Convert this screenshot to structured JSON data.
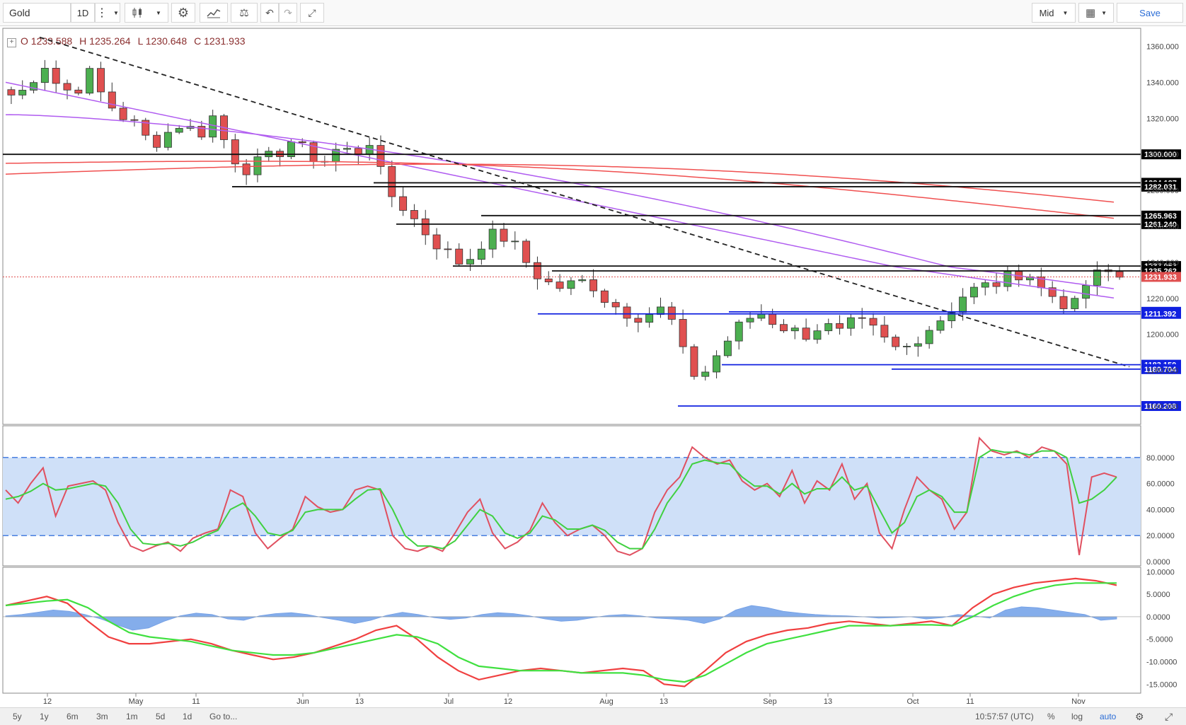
{
  "toolbar": {
    "symbol": "Gold",
    "interval": "1D",
    "price_type": "Mid",
    "save_label": "Save"
  },
  "ohlc": {
    "open": "O 1233.588",
    "high": "H 1235.264",
    "low": "L 1230.648",
    "close": "C 1231.933"
  },
  "bottom_bar": {
    "ranges": [
      "5y",
      "1y",
      "6m",
      "3m",
      "1m",
      "5d",
      "1d"
    ],
    "goto": "Go to...",
    "time": "10:57:57 (UTC)",
    "percent": "%",
    "log": "log",
    "auto": "auto"
  },
  "colors": {
    "up": "#4caf50",
    "down": "#e05050",
    "ma_purple": "#b05cf0",
    "ma_red": "#f05050",
    "support": "#1020e0",
    "rsi_band": "#cfe0f8",
    "macd_hist": "#6f9fe8"
  },
  "chart_data": [
    {
      "type": "candlestick",
      "x_labels": [
        "12",
        "May",
        "11",
        "Jun",
        "13",
        "Jul",
        "12",
        "Aug",
        "13",
        "Sep",
        "13",
        "Oct",
        "11",
        "Nov"
      ],
      "ylim": [
        1150,
        1370
      ],
      "y_ticks": [
        "1360.000",
        "1340.000",
        "1320.000",
        "1300.000",
        "1280.000",
        "1260.000",
        "1240.000",
        "1220.000",
        "1200.000",
        "1180.000",
        "1160.000"
      ],
      "close_path": [
        1333,
        1336,
        1352,
        1338,
        1334,
        1345,
        1330,
        1322,
        1316,
        1305,
        1312,
        1318,
        1310,
        1322,
        1300,
        1292,
        1296,
        1300,
        1308,
        1300,
        1296,
        1304,
        1300,
        1308,
        1280,
        1272,
        1262,
        1252,
        1245,
        1238,
        1250,
        1256,
        1252,
        1240,
        1230,
        1226,
        1228,
        1230,
        1220,
        1214,
        1210,
        1212,
        1215,
        1190,
        1174,
        1186,
        1198,
        1208,
        1212,
        1206,
        1202,
        1200,
        1206,
        1200,
        1207,
        1204,
        1196,
        1190,
        1198,
        1205,
        1212,
        1222,
        1226,
        1228,
        1232,
        1236,
        1225,
        1220,
        1214,
        1230,
        1235,
        1232
      ],
      "horizontal_levels": [
        {
          "label": "1300.000",
          "value": 1300.0,
          "color": "black"
        },
        {
          "label": "1284.187",
          "value": 1284.187,
          "color": "black"
        },
        {
          "label": "1282.031",
          "value": 1282.031,
          "color": "black"
        },
        {
          "label": "1265.963",
          "value": 1265.963,
          "color": "black"
        },
        {
          "label": "1261.240",
          "value": 1261.24,
          "color": "black"
        },
        {
          "label": "1237.953",
          "value": 1237.953,
          "color": "black"
        },
        {
          "label": "1235.262",
          "value": 1235.262,
          "color": "black"
        },
        {
          "label": "1231.933",
          "value": 1231.933,
          "color": "red"
        },
        {
          "label": "1212.526",
          "value": 1212.526,
          "color": "blue"
        },
        {
          "label": "1211.392",
          "value": 1211.392,
          "color": "blue"
        },
        {
          "label": "1183.150",
          "value": 1183.15,
          "color": "blue"
        },
        {
          "label": "1180.704",
          "value": 1180.704,
          "color": "blue"
        },
        {
          "label": "1160.208",
          "value": 1160.208,
          "color": "blue"
        }
      ],
      "trendline": {
        "style": "dashed",
        "from": 1365,
        "to": 1182
      }
    },
    {
      "type": "line",
      "ylim": [
        0,
        100
      ],
      "y_ticks": [
        "80.0000",
        "60.0000",
        "40.0000",
        "20.0000",
        "0.0000"
      ],
      "band": [
        20,
        80
      ],
      "series": [
        {
          "values": [
            55,
            45,
            60,
            72,
            35,
            58,
            60,
            62,
            55,
            30,
            12,
            8,
            12,
            15,
            8,
            18,
            22,
            25,
            55,
            50,
            22,
            10,
            18,
            25,
            50,
            42,
            38,
            40,
            55,
            58,
            55,
            20,
            10,
            8,
            12,
            8,
            22,
            38,
            48,
            22,
            10,
            15,
            24,
            45,
            30,
            20,
            25,
            28,
            20,
            8,
            5,
            10,
            38,
            55,
            65,
            88,
            80,
            75,
            78,
            62,
            55,
            60,
            50,
            70,
            45,
            62,
            55,
            75,
            48,
            60,
            22,
            10,
            40,
            65,
            55,
            48,
            25,
            38,
            95,
            85,
            82,
            85,
            80,
            88,
            85,
            75,
            5,
            65,
            68,
            65
          ]
        },
        {
          "values": [
            48,
            50,
            54,
            60,
            55,
            56,
            58,
            60,
            58,
            45,
            25,
            14,
            13,
            14,
            12,
            15,
            20,
            24,
            40,
            45,
            35,
            22,
            20,
            24,
            38,
            40,
            40,
            40,
            48,
            55,
            56,
            40,
            20,
            12,
            12,
            10,
            16,
            28,
            40,
            35,
            22,
            18,
            22,
            35,
            32,
            25,
            25,
            28,
            24,
            15,
            10,
            10,
            25,
            45,
            58,
            75,
            78,
            76,
            75,
            65,
            58,
            58,
            52,
            60,
            52,
            56,
            56,
            65,
            55,
            58,
            40,
            22,
            30,
            50,
            55,
            50,
            38,
            38,
            80,
            86,
            84,
            84,
            82,
            85,
            85,
            80,
            45,
            48,
            55,
            65
          ]
        }
      ]
    },
    {
      "type": "line",
      "ylim": [
        -17,
        11
      ],
      "y_ticks": [
        "10.0000",
        "5.0000",
        "0.0000",
        "-5.0000",
        "-10.0000",
        "-15.0000"
      ],
      "histogram": [
        0.2,
        0.5,
        1.0,
        1.5,
        1.2,
        0.5,
        -0.5,
        -1.8,
        -3.0,
        -2.5,
        -1.0,
        0.2,
        0.8,
        0.5,
        -0.5,
        -0.8,
        0.2,
        0.7,
        0.9,
        0.5,
        -0.2,
        -0.8,
        -1.5,
        -0.8,
        0.3,
        1.0,
        0.5,
        -0.2,
        -0.6,
        -0.3,
        0.5,
        0.9,
        0.7,
        0.2,
        -0.5,
        -1.0,
        -0.8,
        -0.2,
        0.3,
        0.5,
        0.2,
        -0.3,
        -0.5,
        -0.8,
        -1.5,
        -0.5,
        1.5,
        2.5,
        2.0,
        1.2,
        0.8,
        0.5,
        0.3,
        0.2,
        0.0,
        -0.3,
        -0.2,
        0.0,
        -0.5,
        -0.2,
        0.5,
        0.2,
        -0.3,
        1.5,
        2.2,
        2.0,
        1.5,
        1.0,
        0.5,
        -0.8,
        -0.5
      ]
    }
  ]
}
